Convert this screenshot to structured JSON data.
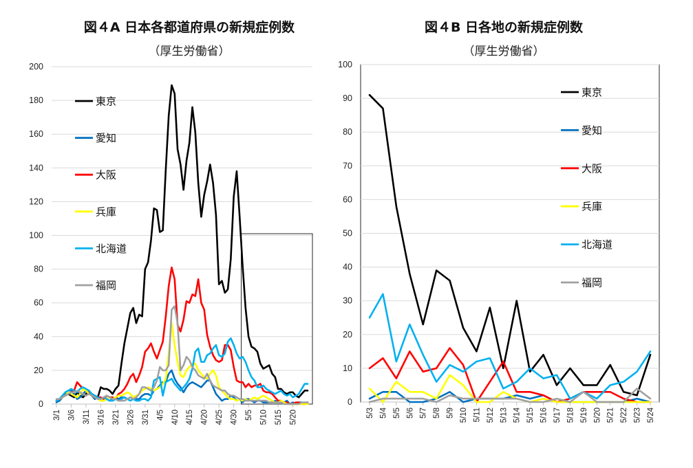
{
  "chart_data": [
    {
      "type": "line",
      "title": "図４A 日本各都道府県の新規症例数",
      "subtitle": "（厚生労働省）",
      "xlabel": "",
      "ylabel": "",
      "ylim": [
        0,
        200
      ],
      "yticks": [
        0,
        20,
        40,
        60,
        80,
        100,
        120,
        140,
        160,
        180,
        200
      ],
      "grid": true,
      "legend_position": "left-inside",
      "x_tick_labels": [
        "3/1",
        "3/6",
        "3/11",
        "3/16",
        "3/21",
        "3/26",
        "3/31",
        "4/5",
        "4/10",
        "4/15",
        "4/20",
        "4/25",
        "4/30",
        "5/5",
        "5/10",
        "5/15",
        "5/20"
      ],
      "x_start": "3/1",
      "num_points": 86,
      "highlight_box": {
        "from": "5/3",
        "to": "5/25",
        "ymax": 101
      },
      "series": [
        {
          "name": "東京",
          "color": "#000000",
          "values": [
            2,
            2,
            4,
            6,
            6,
            5,
            4,
            7,
            5,
            4,
            6,
            8,
            5,
            3,
            4,
            10,
            9,
            9,
            8,
            6,
            9,
            11,
            24,
            36,
            45,
            54,
            57,
            48,
            53,
            52,
            80,
            84,
            97,
            116,
            115,
            102,
            103,
            139,
            171,
            189,
            184,
            151,
            142,
            127,
            144,
            155,
            176,
            161,
            131,
            111,
            124,
            132,
            142,
            131,
            112,
            71,
            73,
            66,
            68,
            86,
            123,
            138,
            111,
            82,
            57,
            40,
            34,
            33,
            31,
            24,
            21,
            22,
            23,
            18,
            16,
            9,
            9,
            7,
            6,
            7,
            7,
            5,
            4,
            6,
            8,
            8
          ]
        },
        {
          "name": "愛知",
          "color": "#0070c0",
          "values": [
            1,
            2,
            4,
            7,
            8,
            8,
            6,
            3,
            4,
            6,
            8,
            7,
            5,
            3,
            4,
            2,
            2,
            3,
            2,
            3,
            4,
            3,
            4,
            4,
            3,
            4,
            3,
            3,
            3,
            5,
            6,
            6,
            5,
            8,
            9,
            11,
            13,
            13,
            18,
            20,
            15,
            12,
            10,
            7,
            10,
            12,
            13,
            12,
            11,
            10,
            12,
            14,
            14,
            10,
            6,
            4,
            2,
            3,
            3,
            5,
            4,
            2,
            3,
            1,
            3,
            3,
            2,
            1,
            2,
            2,
            1,
            1,
            1,
            1,
            2,
            1,
            1,
            1,
            2,
            0,
            1,
            0,
            1,
            1,
            0,
            1
          ]
        },
        {
          "name": "大阪",
          "color": "#ff0000",
          "values": [
            2,
            3,
            4,
            5,
            6,
            7,
            8,
            13,
            11,
            9,
            8,
            7,
            6,
            5,
            4,
            4,
            3,
            5,
            4,
            4,
            3,
            6,
            7,
            9,
            12,
            16,
            18,
            13,
            17,
            22,
            31,
            33,
            36,
            31,
            27,
            32,
            37,
            52,
            70,
            81,
            74,
            47,
            43,
            50,
            61,
            60,
            65,
            64,
            74,
            60,
            56,
            41,
            34,
            29,
            26,
            25,
            26,
            35,
            35,
            32,
            22,
            14,
            13,
            13,
            10,
            12,
            10,
            11,
            11,
            12,
            8,
            7,
            7,
            6,
            4,
            2,
            2,
            1,
            1,
            0,
            0,
            1,
            1,
            0,
            0,
            1
          ]
        },
        {
          "name": "兵庫",
          "color": "#ffff00",
          "values": [
            2,
            3,
            4,
            5,
            7,
            6,
            5,
            4,
            6,
            9,
            8,
            6,
            5,
            4,
            3,
            2,
            2,
            3,
            4,
            3,
            4,
            5,
            5,
            6,
            7,
            6,
            4,
            5,
            6,
            8,
            9,
            10,
            9,
            8,
            9,
            10,
            12,
            15,
            30,
            48,
            35,
            25,
            17,
            16,
            20,
            22,
            24,
            24,
            20,
            18,
            16,
            15,
            18,
            20,
            17,
            10,
            8,
            6,
            4,
            3,
            3,
            2,
            3,
            2,
            3,
            2,
            3,
            4,
            3,
            4,
            5,
            4,
            3,
            2,
            1,
            1,
            2,
            1,
            0,
            0,
            0,
            0,
            0,
            0,
            0,
            0
          ]
        },
        {
          "name": "北海道",
          "color": "#00b0f0",
          "values": [
            2,
            3,
            5,
            7,
            8,
            9,
            8,
            7,
            9,
            10,
            9,
            8,
            6,
            5,
            4,
            3,
            4,
            3,
            2,
            2,
            3,
            2,
            3,
            4,
            3,
            2,
            3,
            2,
            2,
            3,
            3,
            2,
            4,
            14,
            15,
            16,
            5,
            13,
            14,
            15,
            12,
            10,
            8,
            10,
            12,
            15,
            21,
            31,
            33,
            25,
            25,
            29,
            30,
            33,
            35,
            29,
            28,
            30,
            37,
            39,
            35,
            30,
            27,
            28,
            25,
            20,
            16,
            14,
            10,
            10,
            11,
            9,
            8,
            7,
            6,
            7,
            8,
            6,
            5,
            6,
            4,
            5,
            6,
            9,
            12,
            12
          ]
        },
        {
          "name": "福岡",
          "color": "#a0a0a0",
          "values": [
            3,
            3,
            4,
            5,
            6,
            7,
            7,
            8,
            7,
            6,
            5,
            6,
            5,
            4,
            3,
            3,
            4,
            5,
            4,
            3,
            3,
            2,
            2,
            2,
            3,
            4,
            3,
            4,
            6,
            10,
            10,
            9,
            8,
            10,
            14,
            22,
            20,
            20,
            23,
            56,
            58,
            48,
            20,
            23,
            28,
            26,
            22,
            20,
            17,
            16,
            15,
            18,
            14,
            11,
            10,
            9,
            8,
            8,
            6,
            5,
            5,
            4,
            3,
            3,
            2,
            2,
            2,
            2,
            2,
            2,
            2,
            2,
            1,
            1,
            1,
            1,
            1,
            0,
            0,
            0,
            0,
            0,
            0,
            1,
            1,
            1
          ]
        }
      ]
    },
    {
      "type": "line",
      "title": "図４B 日各地の新規症例数",
      "subtitle": "（厚生労働省）",
      "xlabel": "",
      "ylabel": "",
      "ylim": [
        0,
        100
      ],
      "yticks": [
        0,
        10,
        20,
        30,
        40,
        50,
        60,
        70,
        80,
        90,
        100
      ],
      "grid": true,
      "legend_position": "right-inside",
      "categories": [
        "5/3",
        "5/4",
        "5/5",
        "5/6",
        "5/7",
        "5/8",
        "5/9",
        "5/10",
        "5/11",
        "5/12",
        "5/13",
        "5/14",
        "5/15",
        "5/16",
        "5/17",
        "5/18",
        "5/19",
        "5/20",
        "5/21",
        "5/22",
        "5/23",
        "5/24"
      ],
      "series": [
        {
          "name": "東京",
          "color": "#000000",
          "values": [
            91,
            87,
            58,
            38,
            23,
            39,
            36,
            22,
            15,
            28,
            10,
            30,
            9,
            14,
            5,
            10,
            5,
            5,
            11,
            3,
            2,
            14
          ]
        },
        {
          "name": "愛知",
          "color": "#0070c0",
          "values": [
            1,
            3,
            3,
            0,
            0,
            1,
            3,
            0,
            1,
            1,
            1,
            2,
            1,
            2,
            0,
            0,
            0,
            0,
            0,
            0,
            1,
            0
          ]
        },
        {
          "name": "大阪",
          "color": "#ff0000",
          "values": [
            10,
            13,
            7,
            15,
            9,
            10,
            16,
            11,
            0,
            6,
            12,
            3,
            3,
            2,
            0,
            1,
            3,
            3,
            3,
            1,
            0,
            0
          ]
        },
        {
          "name": "兵庫",
          "color": "#ffff00",
          "values": [
            4,
            0,
            6,
            3,
            3,
            1,
            8,
            5,
            0,
            0,
            3,
            1,
            0,
            1,
            0,
            0,
            0,
            0,
            0,
            0,
            0,
            0
          ]
        },
        {
          "name": "北海道",
          "color": "#00b0f0",
          "values": [
            25,
            32,
            12,
            23,
            14,
            6,
            11,
            9,
            12,
            13,
            4,
            6,
            10,
            7,
            8,
            1,
            3,
            1,
            5,
            6,
            9,
            15
          ]
        },
        {
          "name": "福岡",
          "color": "#a0a0a0",
          "values": [
            0,
            1,
            1,
            1,
            1,
            0,
            2,
            1,
            1,
            1,
            1,
            1,
            0,
            0,
            1,
            0,
            3,
            0,
            0,
            0,
            4,
            1
          ]
        }
      ]
    }
  ]
}
